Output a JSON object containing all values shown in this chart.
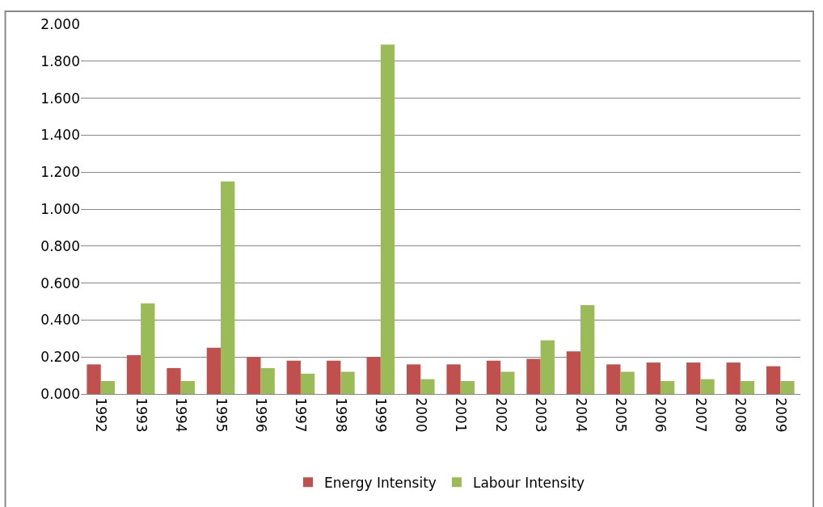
{
  "chart_data": {
    "type": "bar",
    "categories": [
      "1992",
      "1993",
      "1994",
      "1995",
      "1996",
      "1997",
      "1998",
      "1999",
      "2000",
      "2001",
      "2002",
      "2003",
      "2004",
      "2005",
      "2006",
      "2007",
      "2008",
      "2009"
    ],
    "series": [
      {
        "name": "Energy Intensity",
        "color": "#c0504d",
        "values": [
          0.16,
          0.21,
          0.14,
          0.25,
          0.2,
          0.18,
          0.18,
          0.2,
          0.16,
          0.16,
          0.18,
          0.19,
          0.23,
          0.16,
          0.17,
          0.17,
          0.17,
          0.15
        ]
      },
      {
        "name": "Labour Intensity",
        "color": "#9bbb59",
        "values": [
          0.07,
          0.49,
          0.07,
          1.15,
          0.14,
          0.11,
          0.12,
          1.89,
          0.08,
          0.07,
          0.12,
          0.29,
          0.48,
          0.12,
          0.07,
          0.08,
          0.07,
          0.07
        ]
      }
    ],
    "ylim": [
      0,
      2
    ],
    "yticks": [
      {
        "value": 0,
        "label": "0.000"
      },
      {
        "value": 0.2,
        "label": "0.200"
      },
      {
        "value": 0.4,
        "label": "0.400"
      },
      {
        "value": 0.6,
        "label": "0.600"
      },
      {
        "value": 0.8,
        "label": "0.800"
      },
      {
        "value": 1.0,
        "label": "1.000"
      },
      {
        "value": 1.2,
        "label": "1.200"
      },
      {
        "value": 1.4,
        "label": "1.400"
      },
      {
        "value": 1.6,
        "label": "1.600"
      },
      {
        "value": 1.8,
        "label": "1.800"
      },
      {
        "value": 2.0,
        "label": "2.000"
      }
    ],
    "grid": "y",
    "legend": "bottom"
  }
}
